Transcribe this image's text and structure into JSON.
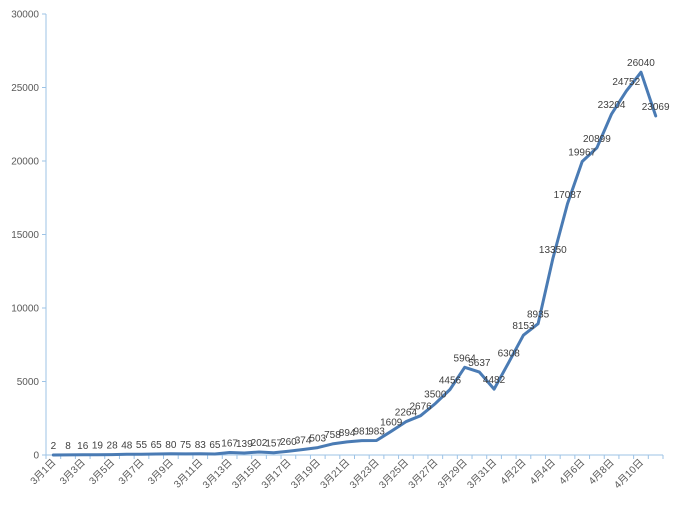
{
  "chart_data": {
    "type": "line",
    "title": "",
    "xlabel": "",
    "ylabel": "",
    "ylim": [
      0,
      30000
    ],
    "yticks": [
      0,
      5000,
      10000,
      15000,
      20000,
      25000,
      30000
    ],
    "grid": false,
    "legend": "none",
    "colors": {
      "line": "#4a7bb4",
      "axis": "#9dc3e6",
      "text": "#595959"
    },
    "x": [
      "3月1日",
      "3月2日",
      "3月3日",
      "3月4日",
      "3月5日",
      "3月6日",
      "3月7日",
      "3月8日",
      "3月9日",
      "3月10日",
      "3月11日",
      "3月12日",
      "3月13日",
      "3月14日",
      "3月15日",
      "3月16日",
      "3月17日",
      "3月18日",
      "3月19日",
      "3月20日",
      "3月21日",
      "3月22日",
      "3月23日",
      "3月24日",
      "3月25日",
      "3月26日",
      "3月27日",
      "3月28日",
      "3月29日",
      "3月30日",
      "3月31日",
      "4月1日",
      "4月2日",
      "4月3日",
      "4月4日",
      "4月5日",
      "4月6日",
      "4月7日",
      "4月8日",
      "4月9日",
      "4月10日",
      "4月11日"
    ],
    "x_tick_labels": [
      "3月1日",
      "3月3日",
      "3月5日",
      "3月7日",
      "3月9日",
      "3月11日",
      "3月13日",
      "3月15日",
      "3月17日",
      "3月19日",
      "3月21日",
      "3月23日",
      "3月25日",
      "3月27日",
      "3月29日",
      "3月31日",
      "4月2日",
      "4月4日",
      "4月6日",
      "4月8日",
      "4月10日"
    ],
    "series": [
      {
        "values": [
          2,
          8,
          16,
          19,
          28,
          48,
          55,
          65,
          80,
          75,
          83,
          65,
          167,
          139,
          202,
          157,
          260,
          374,
          503,
          758,
          894,
          981,
          983,
          1609,
          2264,
          2676,
          3500,
          4456,
          5964,
          5637,
          4482,
          6308,
          8153,
          8935,
          13350,
          17087,
          19967,
          20899,
          23204,
          24752,
          26040,
          23069
        ]
      }
    ]
  }
}
